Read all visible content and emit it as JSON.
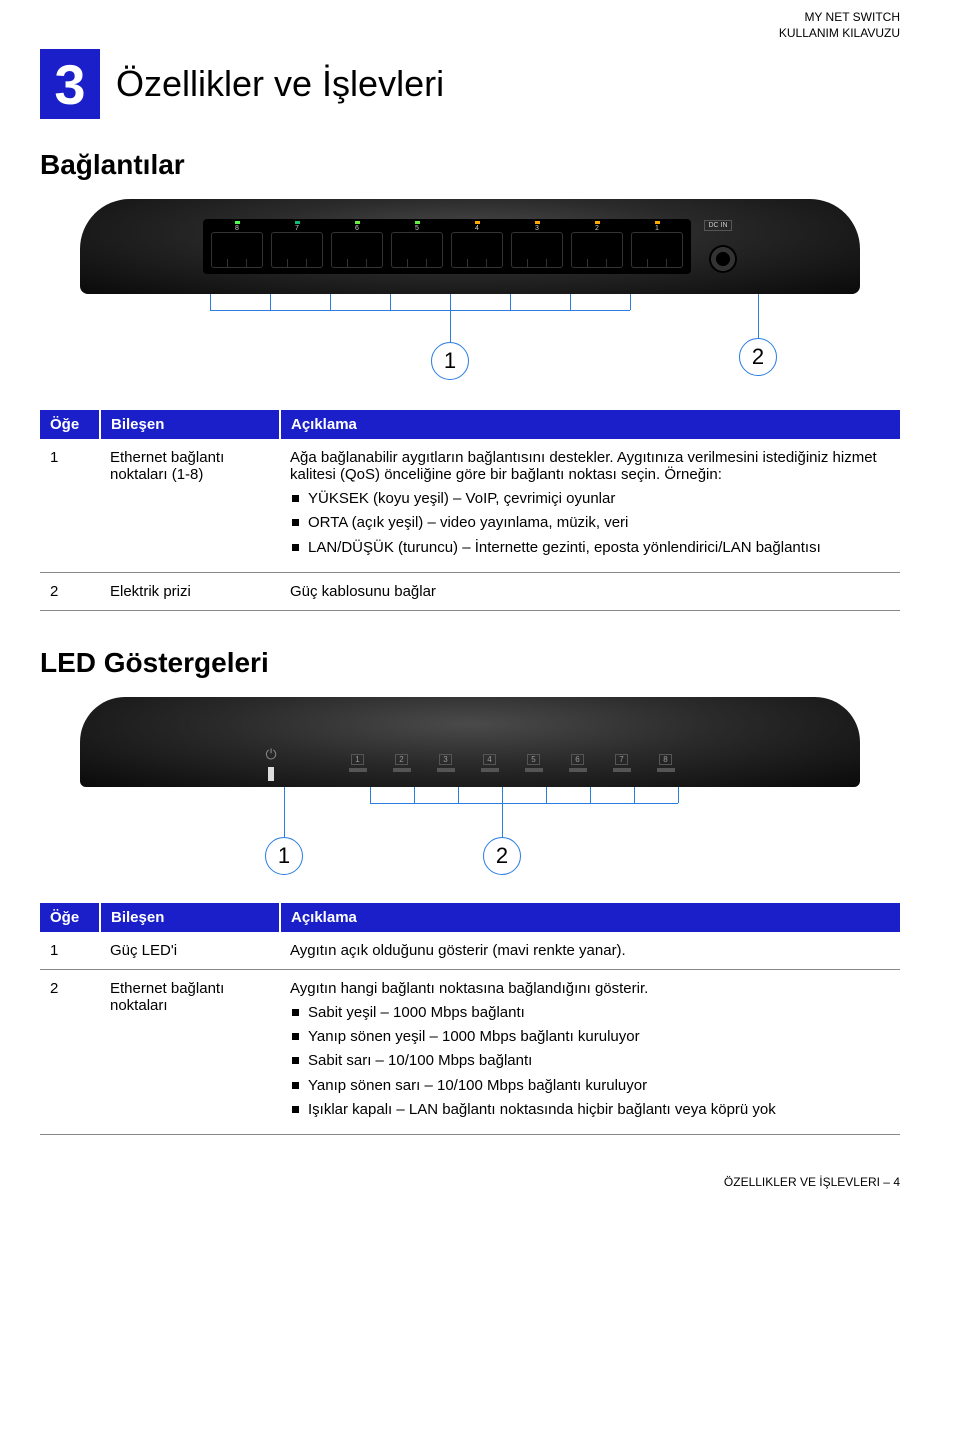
{
  "header": {
    "line1": "MY NET SWITCH",
    "line2": "KULLANIM KILAVUZU"
  },
  "chapter": {
    "num": "3",
    "title": "Özellikler ve İşlevleri"
  },
  "section1": {
    "title": "Bağlantılar",
    "callout1": "1",
    "callout2": "2",
    "portLabels": [
      "8",
      "HIGH",
      "7",
      "6",
      "5",
      "MID",
      "4",
      "3",
      "2",
      "LAN/LOW",
      "1"
    ],
    "dcLabel": "DC IN"
  },
  "table1": {
    "headers": {
      "item": "Öğe",
      "component": "Bileşen",
      "desc": "Açıklama"
    },
    "rows": [
      {
        "item": "1",
        "component": "Ethernet bağlantı noktaları (1-8)",
        "descIntro": "Ağa bağlanabilir aygıtların bağlantısını destekler. Aygıtınıza verilmesini istediğiniz hizmet kalitesi (QoS) önceliğine göre bir bağlantı noktası seçin. Örneğin:",
        "bullets": [
          "YÜKSEK (koyu yeşil) – VoIP, çevrimiçi oyunlar",
          "ORTA (açık yeşil) – video yayınlama, müzik, veri",
          "LAN/DÜŞÜK (turuncu) – İnternette gezinti, eposta yönlendirici/LAN bağlantısı"
        ]
      },
      {
        "item": "2",
        "component": "Elektrik prizi",
        "descIntro": "Güç kablosunu bağlar",
        "bullets": []
      }
    ]
  },
  "section2": {
    "title": "LED Göstergeleri",
    "callout1": "1",
    "callout2": "2",
    "ledNums": [
      "1",
      "2",
      "3",
      "4",
      "5",
      "6",
      "7",
      "8"
    ]
  },
  "table2": {
    "headers": {
      "item": "Öğe",
      "component": "Bileşen",
      "desc": "Açıklama"
    },
    "rows": [
      {
        "item": "1",
        "component": "Güç LED'i",
        "descIntro": "Aygıtın açık olduğunu gösterir (mavi renkte yanar).",
        "bullets": []
      },
      {
        "item": "2",
        "component": "Ethernet bağlantı noktaları",
        "descIntro": "Aygıtın hangi bağlantı noktasına bağlandığını gösterir.",
        "bullets": [
          "Sabit yeşil – 1000 Mbps bağlantı",
          "Yanıp sönen yeşil – 1000 Mbps bağlantı kuruluyor",
          "Sabit sarı – 10/100 Mbps bağlantı",
          "Yanıp sönen sarı – 10/100 Mbps bağlantı kuruluyor",
          "Işıklar kapalı – LAN bağlantı noktasında hiçbir bağlantı veya köprü yok"
        ]
      }
    ]
  },
  "footer": "ÖZELLIKLER VE İŞLEVLERI – 4"
}
